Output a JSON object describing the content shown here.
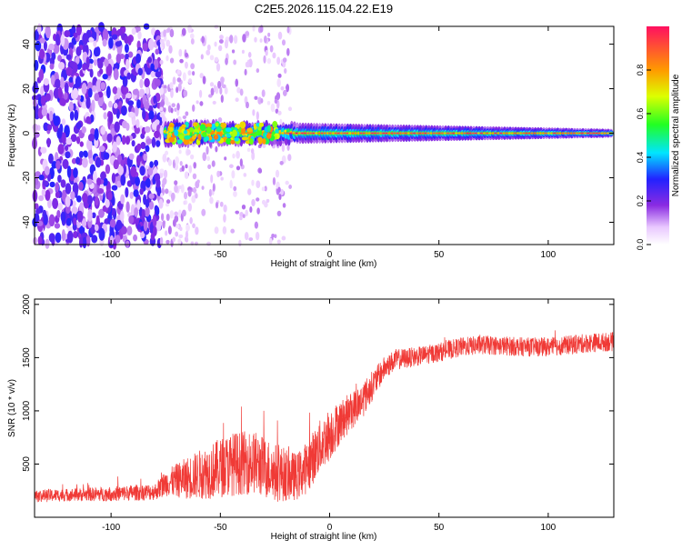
{
  "title": "C2E5.2026.115.04.22.E19",
  "colors": {
    "snr_line": "#f03a36",
    "axis": "#000000",
    "background": "#ffffff"
  },
  "chart_data": [
    {
      "type": "heatmap",
      "xlabel": "Height of straight line (km)",
      "ylabel": "Frequency (Hz)",
      "xlim": [
        -135,
        130
      ],
      "ylim": [
        -50,
        48
      ],
      "xticks": [
        -100,
        -50,
        0,
        50,
        100
      ],
      "yticks": [
        -40,
        -20,
        0,
        20,
        40
      ],
      "colorbar": {
        "label": "Normalized spectral amplitude",
        "range": [
          0,
          1
        ],
        "ticks": [
          "0.0",
          "0.2",
          "0.4",
          "0.6",
          "0.8"
        ],
        "tick_values": [
          0,
          0.2,
          0.4,
          0.6,
          0.8
        ]
      },
      "regions": [
        {
          "name": "noise",
          "x": [
            -135,
            -77
          ],
          "freq": [
            -50,
            48
          ],
          "amplitude": 0.15
        },
        {
          "name": "sparse-noise",
          "x": [
            -77,
            -18
          ],
          "freq": [
            -50,
            48
          ],
          "amplitude": 0.05
        },
        {
          "name": "signal-band",
          "x": [
            -75,
            130
          ],
          "center_freq": 0,
          "halfwidth_start": 6,
          "halfwidth_end": 2,
          "peak_amplitude": 0.95
        }
      ]
    },
    {
      "type": "line",
      "xlabel": "Height of straight line (km)",
      "ylabel": "SNR (10 * v/v)",
      "xlim": [
        -135,
        130
      ],
      "ylim": [
        0,
        2050
      ],
      "xticks": [
        -100,
        -50,
        0,
        50,
        100
      ],
      "yticks": [
        500,
        1000,
        1500,
        2000
      ],
      "series": [
        {
          "name": "SNR",
          "x": [
            -135,
            -120,
            -100,
            -80,
            -75,
            -65,
            -55,
            -45,
            -35,
            -25,
            -15,
            -10,
            -5,
            0,
            5,
            10,
            15,
            20,
            25,
            30,
            40,
            50,
            60,
            70,
            80,
            90,
            100,
            110,
            120,
            130
          ],
          "values": [
            200,
            210,
            220,
            240,
            320,
            370,
            430,
            500,
            520,
            420,
            380,
            480,
            650,
            780,
            900,
            1000,
            1100,
            1250,
            1400,
            1480,
            1510,
            1550,
            1600,
            1620,
            1610,
            1600,
            1600,
            1620,
            1640,
            1650
          ],
          "noise": [
            60,
            60,
            70,
            80,
            120,
            200,
            260,
            300,
            300,
            280,
            220,
            250,
            250,
            250,
            200,
            180,
            170,
            140,
            110,
            100,
            90,
            90,
            90,
            90,
            90,
            90,
            90,
            90,
            90,
            90
          ]
        }
      ]
    }
  ]
}
